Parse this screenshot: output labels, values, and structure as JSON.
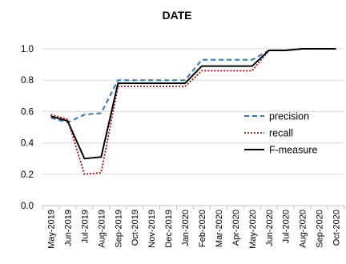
{
  "chart_data": {
    "type": "line",
    "title": "DATE",
    "xlabel": "",
    "ylabel": "",
    "categories": [
      "May-2019",
      "Jun-2019",
      "Jul-2019",
      "Aug-2019",
      "Sep-2019",
      "Oct-2019",
      "Nov-2019",
      "Dec-2019",
      "Jan-2020",
      "Feb-2020",
      "Mar-2020",
      "Apr-2020",
      "May-2020",
      "Jun-2020",
      "Jul-2020",
      "Aug-2020",
      "Sep-2020",
      "Oct-2020"
    ],
    "ylim": [
      0.0,
      1.0
    ],
    "yticks": [
      "0.0",
      "0.2",
      "0.4",
      "0.6",
      "0.8",
      "1.0"
    ],
    "grid": "horizontal",
    "legend_position": "right",
    "series": [
      {
        "name": "precision",
        "color": "#2e75b6",
        "style": "dashed",
        "values": [
          0.56,
          0.53,
          0.58,
          0.59,
          0.8,
          0.8,
          0.8,
          0.8,
          0.8,
          0.93,
          0.93,
          0.93,
          0.93,
          0.99,
          0.99,
          1.0,
          1.0,
          1.0
        ]
      },
      {
        "name": "recall",
        "color": "#c00000",
        "style": "dotted",
        "values": [
          0.58,
          0.55,
          0.2,
          0.21,
          0.76,
          0.76,
          0.76,
          0.76,
          0.76,
          0.86,
          0.86,
          0.86,
          0.86,
          0.99,
          0.99,
          1.0,
          1.0,
          1.0
        ]
      },
      {
        "name": "F-measure",
        "color": "#000000",
        "style": "solid",
        "values": [
          0.57,
          0.54,
          0.3,
          0.31,
          0.78,
          0.78,
          0.78,
          0.78,
          0.78,
          0.89,
          0.89,
          0.89,
          0.89,
          0.99,
          0.99,
          1.0,
          1.0,
          1.0
        ]
      }
    ]
  }
}
